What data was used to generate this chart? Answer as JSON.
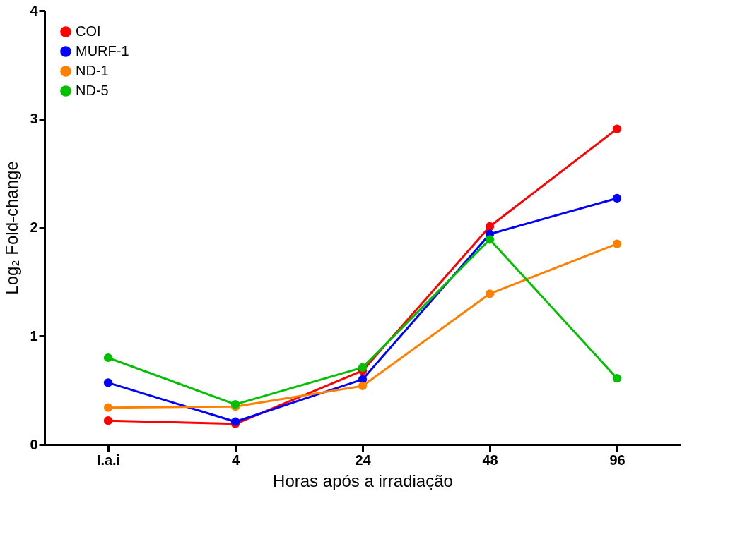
{
  "chart_data": {
    "type": "line",
    "xlabel": "Horas após a irradiação",
    "ylabel": "Log₂ Fold-change",
    "categories": [
      "I.a.i",
      "4",
      "24",
      "48",
      "96"
    ],
    "ylim": [
      0,
      4
    ],
    "yticks": [
      0,
      1,
      2,
      3,
      4
    ],
    "grid": false,
    "legend": "top left",
    "marker": "circle",
    "line_style": "solid",
    "series": [
      {
        "name": "COI",
        "color": "#ff0000",
        "values": [
          0.22,
          0.19,
          0.68,
          2.01,
          2.91
        ]
      },
      {
        "name": "MURF-1",
        "color": "#0000ff",
        "values": [
          0.57,
          0.21,
          0.6,
          1.94,
          2.27
        ]
      },
      {
        "name": "ND-1",
        "color": "#ff8000",
        "values": [
          0.34,
          0.35,
          0.54,
          1.39,
          1.85
        ]
      },
      {
        "name": "ND-5",
        "color": "#00c000",
        "values": [
          0.8,
          0.37,
          0.71,
          1.89,
          0.61
        ]
      }
    ]
  }
}
